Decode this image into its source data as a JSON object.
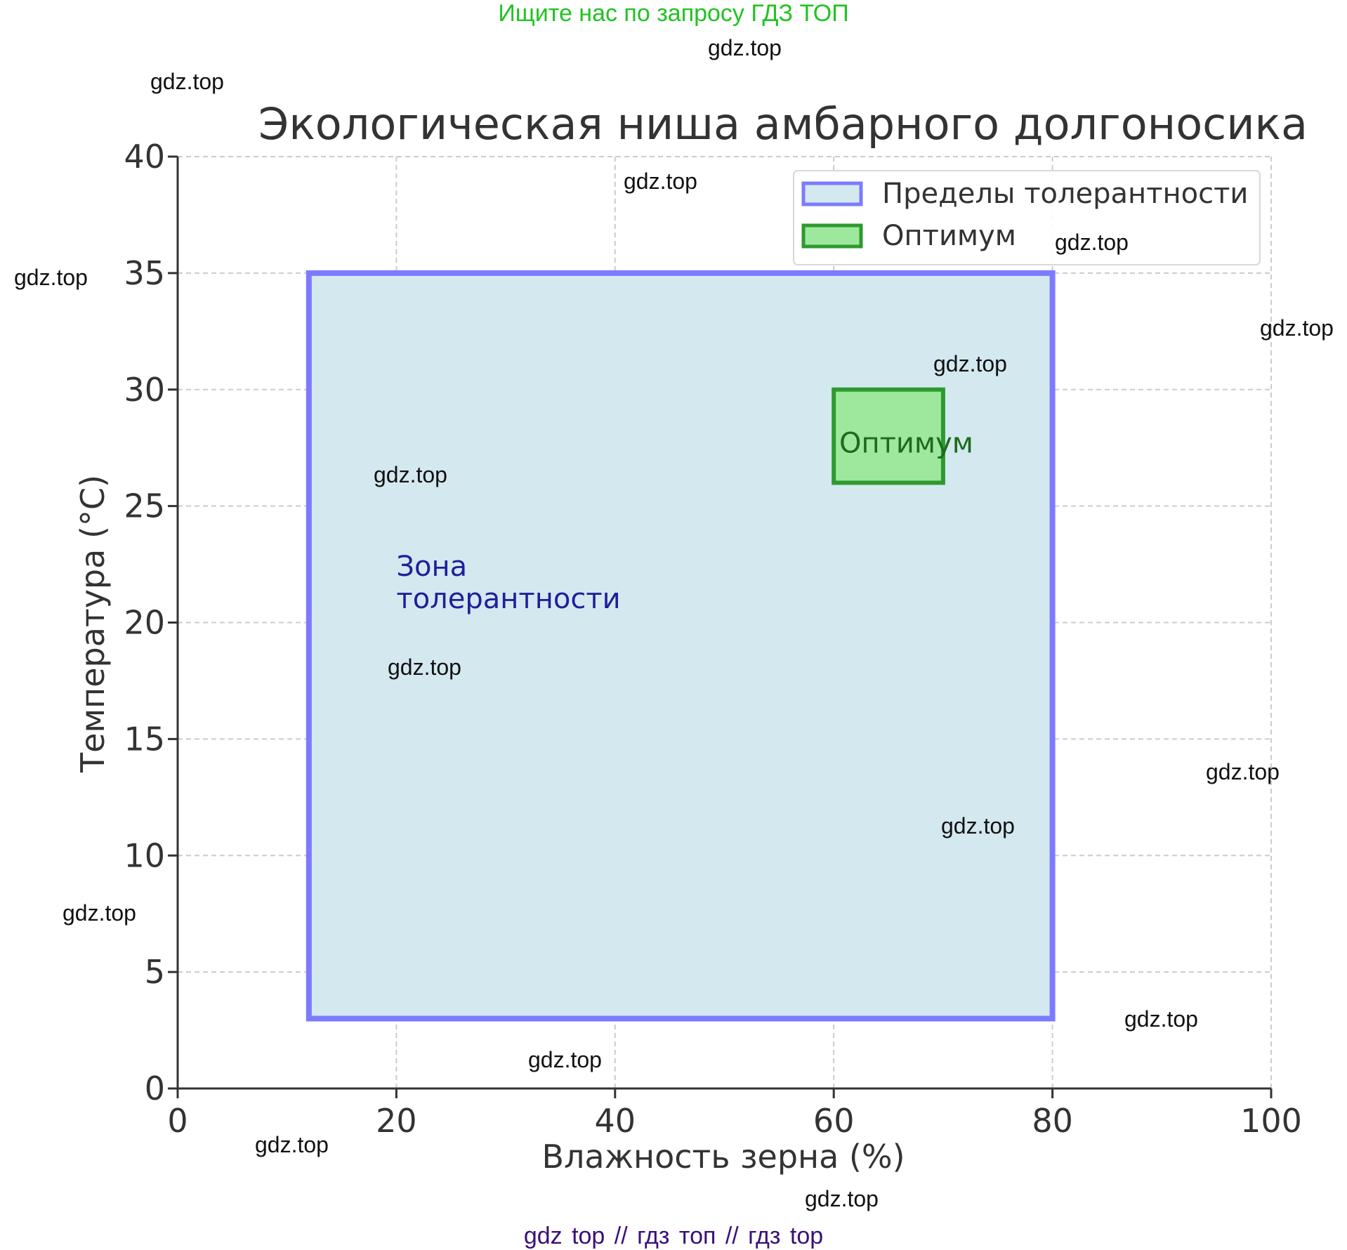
{
  "banner_top": "Ищите нас по запросу ГДЗ ТОП",
  "banner_bottom": "gdz top  //  гдз топ  //  гдз top",
  "watermarks": [
    "gdz.top",
    "gdz.top",
    "gdz.top",
    "gdz.top",
    "gdz.top",
    "gdz.top",
    "gdz.top",
    "gdz.top",
    "gdz.top",
    "gdz.top",
    "gdz.top",
    "gdz.top",
    "gdz.top",
    "gdz.top",
    "gdz.top",
    "gdz.top"
  ],
  "chart_data": {
    "type": "area",
    "title": "Экологическая ниша амбарного долгоносика",
    "xlabel": "Влажность зерна (%)",
    "ylabel": "Температура (°C)",
    "xlim": [
      0,
      100
    ],
    "ylim": [
      0,
      40
    ],
    "xticks": [
      0,
      20,
      40,
      60,
      80,
      100
    ],
    "yticks": [
      0,
      5,
      10,
      15,
      20,
      25,
      30,
      35,
      40
    ],
    "grid": true,
    "legend_position": "top-right",
    "regions": [
      {
        "name": "Пределы толерантности",
        "x": [
          12,
          80
        ],
        "y": [
          3,
          35
        ],
        "fill": "#d4e8f0",
        "edge": "#7b7bff"
      },
      {
        "name": "Оптимум",
        "x": [
          60,
          70
        ],
        "y": [
          26,
          30
        ],
        "fill": "#9ee89e",
        "edge": "#2e9a2e"
      }
    ],
    "annotations": [
      {
        "lines": [
          "Зона",
          "толерантности"
        ],
        "x": 20,
        "y": 22,
        "color": "#1f1f9a"
      },
      {
        "lines": [
          "Оптимум"
        ],
        "x": 60.5,
        "y": 27.3,
        "color": "#1d6b1d"
      }
    ]
  }
}
